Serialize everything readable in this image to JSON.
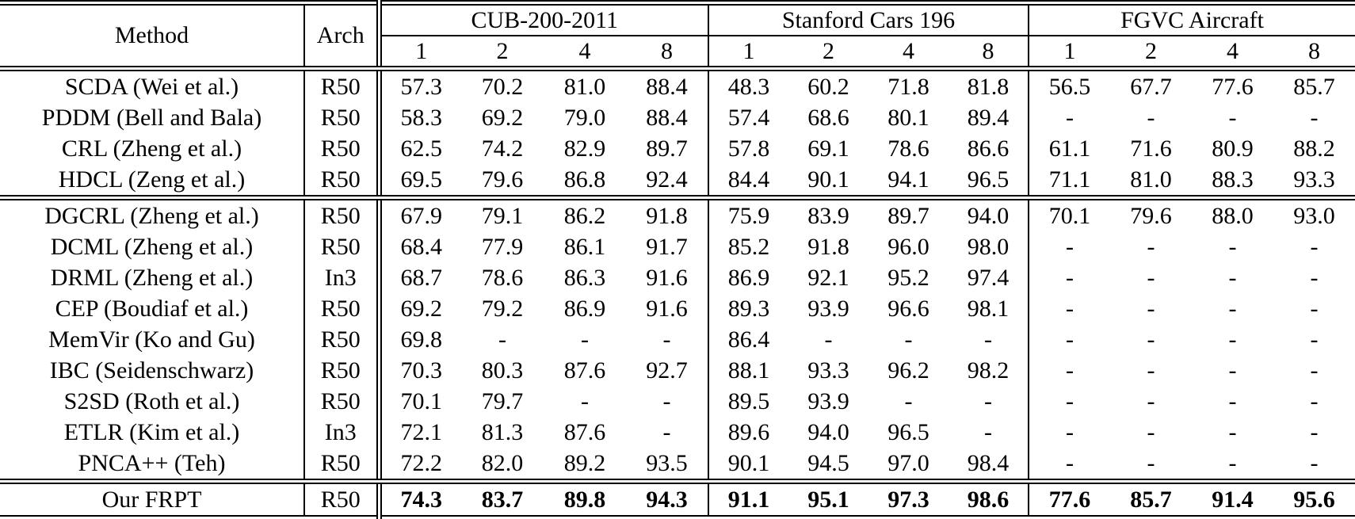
{
  "table": {
    "title": "retrieval-results-table",
    "header": {
      "method": "Method",
      "arch": "Arch"
    },
    "groups": [
      {
        "label": "CUB-200-2011",
        "ks": [
          "1",
          "2",
          "4",
          "8"
        ]
      },
      {
        "label": "Stanford Cars 196",
        "ks": [
          "1",
          "2",
          "4",
          "8"
        ]
      },
      {
        "label": "FGVC Aircraft",
        "ks": [
          "1",
          "2",
          "4",
          "8"
        ]
      }
    ],
    "rows": [
      {
        "method": "SCDA (Wei et al.)",
        "arch": "R50",
        "values": [
          [
            "57.3",
            "70.2",
            "81.0",
            "88.4"
          ],
          [
            "48.3",
            "60.2",
            "71.8",
            "81.8"
          ],
          [
            "56.5",
            "67.7",
            "77.6",
            "85.7"
          ]
        ],
        "section_end": false,
        "highlight": false
      },
      {
        "method": "PDDM (Bell and Bala)",
        "arch": "R50",
        "values": [
          [
            "58.3",
            "69.2",
            "79.0",
            "88.4"
          ],
          [
            "57.4",
            "68.6",
            "80.1",
            "89.4"
          ],
          [
            "-",
            "-",
            "-",
            "-"
          ]
        ],
        "section_end": false,
        "highlight": false
      },
      {
        "method": "CRL (Zheng et al.)",
        "arch": "R50",
        "values": [
          [
            "62.5",
            "74.2",
            "82.9",
            "89.7"
          ],
          [
            "57.8",
            "69.1",
            "78.6",
            "86.6"
          ],
          [
            "61.1",
            "71.6",
            "80.9",
            "88.2"
          ]
        ],
        "section_end": false,
        "highlight": false
      },
      {
        "method": "HDCL (Zeng et al.)",
        "arch": "R50",
        "values": [
          [
            "69.5",
            "79.6",
            "86.8",
            "92.4"
          ],
          [
            "84.4",
            "90.1",
            "94.1",
            "96.5"
          ],
          [
            "71.1",
            "81.0",
            "88.3",
            "93.3"
          ]
        ],
        "section_end": true,
        "highlight": false
      },
      {
        "method": "DGCRL (Zheng et al.)",
        "arch": "R50",
        "values": [
          [
            "67.9",
            "79.1",
            "86.2",
            "91.8"
          ],
          [
            "75.9",
            "83.9",
            "89.7",
            "94.0"
          ],
          [
            "70.1",
            "79.6",
            "88.0",
            "93.0"
          ]
        ],
        "section_end": false,
        "highlight": false
      },
      {
        "method": "DCML (Zheng et al.)",
        "arch": "R50",
        "values": [
          [
            "68.4",
            "77.9",
            "86.1",
            "91.7"
          ],
          [
            "85.2",
            "91.8",
            "96.0",
            "98.0"
          ],
          [
            "-",
            "-",
            "-",
            "-"
          ]
        ],
        "section_end": false,
        "highlight": false
      },
      {
        "method": "DRML (Zheng et al.)",
        "arch": "In3",
        "values": [
          [
            "68.7",
            "78.6",
            "86.3",
            "91.6"
          ],
          [
            "86.9",
            "92.1",
            "95.2",
            "97.4"
          ],
          [
            "-",
            "-",
            "-",
            "-"
          ]
        ],
        "section_end": false,
        "highlight": false
      },
      {
        "method": "CEP (Boudiaf et al.)",
        "arch": "R50",
        "values": [
          [
            "69.2",
            "79.2",
            "86.9",
            "91.6"
          ],
          [
            "89.3",
            "93.9",
            "96.6",
            "98.1"
          ],
          [
            "-",
            "-",
            "-",
            "-"
          ]
        ],
        "section_end": false,
        "highlight": false
      },
      {
        "method": "MemVir (Ko and Gu)",
        "arch": "R50",
        "values": [
          [
            "69.8",
            "-",
            "-",
            "-"
          ],
          [
            "86.4",
            "-",
            "-",
            "-"
          ],
          [
            "-",
            "-",
            "-",
            "-"
          ]
        ],
        "section_end": false,
        "highlight": false
      },
      {
        "method": "IBC (Seidenschwarz)",
        "arch": "R50",
        "values": [
          [
            "70.3",
            "80.3",
            "87.6",
            "92.7"
          ],
          [
            "88.1",
            "93.3",
            "96.2",
            "98.2"
          ],
          [
            "-",
            "-",
            "-",
            "-"
          ]
        ],
        "section_end": false,
        "highlight": false
      },
      {
        "method": "S2SD (Roth et al.)",
        "arch": "R50",
        "values": [
          [
            "70.1",
            "79.7",
            "-",
            "-"
          ],
          [
            "89.5",
            "93.9",
            "-",
            "-"
          ],
          [
            "-",
            "-",
            "-",
            "-"
          ]
        ],
        "section_end": false,
        "highlight": false
      },
      {
        "method": "ETLR (Kim et al.)",
        "arch": "In3",
        "values": [
          [
            "72.1",
            "81.3",
            "87.6",
            "-"
          ],
          [
            "89.6",
            "94.0",
            "96.5",
            "-"
          ],
          [
            "-",
            "-",
            "-",
            "-"
          ]
        ],
        "section_end": false,
        "highlight": false
      },
      {
        "method": "PNCA++ (Teh)",
        "arch": "R50",
        "values": [
          [
            "72.2",
            "82.0",
            "89.2",
            "93.5"
          ],
          [
            "90.1",
            "94.5",
            "97.0",
            "98.4"
          ],
          [
            "-",
            "-",
            "-",
            "-"
          ]
        ],
        "section_end": true,
        "highlight": false
      },
      {
        "method": "Our FRPT",
        "arch": "R50",
        "values": [
          [
            "74.3",
            "83.7",
            "89.8",
            "94.3"
          ],
          [
            "91.1",
            "95.1",
            "97.3",
            "98.6"
          ],
          [
            "77.6",
            "85.7",
            "91.4",
            "95.6"
          ]
        ],
        "section_end": false,
        "highlight": true
      }
    ]
  },
  "chart_data": {
    "type": "table",
    "title": "Recall@K comparison on CUB-200-2011, Stanford Cars 196 and FGVC Aircraft",
    "columns": [
      "Method",
      "Arch",
      "CUB-200-2011 @1",
      "CUB-200-2011 @2",
      "CUB-200-2011 @4",
      "CUB-200-2011 @8",
      "Stanford Cars 196 @1",
      "Stanford Cars 196 @2",
      "Stanford Cars 196 @4",
      "Stanford Cars 196 @8",
      "FGVC Aircraft @1",
      "FGVC Aircraft @2",
      "FGVC Aircraft @4",
      "FGVC Aircraft @8"
    ],
    "best_row": "Our FRPT"
  }
}
